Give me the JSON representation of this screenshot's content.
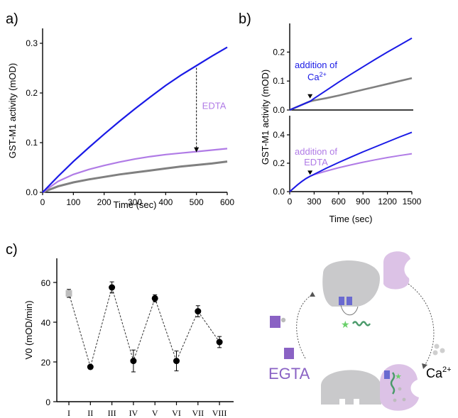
{
  "colors": {
    "calcium": "#1a1ae6",
    "edta": "#b07be6",
    "control": "#808080",
    "first_point": "#bdbdbd",
    "protein_gray": "#c9c9cb",
    "protein_purple": "#dcc2e6",
    "edge_purple": "#8a62c4",
    "helix_green": "#4a9a6a",
    "star_green": "#6ad06a"
  },
  "panel_labels": {
    "a": "a)",
    "b": "b)",
    "c": "c)"
  },
  "panel_a": {
    "xlabel": "Time (sec)",
    "ylabel": "GST-M1 activity (mOD)",
    "xticks": [
      "0",
      "100",
      "200",
      "300",
      "400",
      "500",
      "600"
    ],
    "yticks": [
      "0.0",
      "0.1",
      "0.2",
      "0.3"
    ],
    "annotation": "EDTA"
  },
  "panel_b": {
    "xlabel": "Time (sec)",
    "ylabel": "GST-M1 activity (mOD)",
    "xticks": [
      "0",
      "300",
      "600",
      "900",
      "1200",
      "1500"
    ],
    "top_yticks": [
      "0.0",
      "0.1",
      "0.2"
    ],
    "bottom_yticks": [
      "0.0",
      "0.2",
      "0.4"
    ],
    "top_annotation_line1": "addition of",
    "top_annotation_line2": "Ca",
    "top_annotation_sup": "2+",
    "bottom_annotation_line1": "addition of",
    "bottom_annotation_line2": "EDTA"
  },
  "panel_c": {
    "ylabel": "V0 (mOD/min)",
    "yticks": [
      "0",
      "20",
      "40",
      "60"
    ],
    "categories": [
      "I",
      "II",
      "III",
      "IV",
      "V",
      "VI",
      "VII",
      "VIII"
    ]
  },
  "diagram": {
    "egta_label": "EGTA",
    "ca_label": "Ca",
    "ca_sup": "2+"
  },
  "chart_data": [
    {
      "type": "line",
      "xlabel": "Time (sec)",
      "ylabel": "GST-M1 activity (mOD)",
      "xlim": [
        0,
        600
      ],
      "ylim": [
        0,
        0.33
      ],
      "annotation": {
        "text": "EDTA",
        "x": 500
      },
      "x": [
        0,
        50,
        100,
        150,
        200,
        250,
        300,
        350,
        400,
        450,
        500,
        550,
        600
      ],
      "series": [
        {
          "color": "calcium",
          "values": [
            0,
            0.032,
            0.062,
            0.09,
            0.117,
            0.143,
            0.168,
            0.192,
            0.215,
            0.236,
            0.255,
            0.274,
            0.292
          ]
        },
        {
          "color": "edta",
          "values": [
            0,
            0.022,
            0.036,
            0.046,
            0.054,
            0.061,
            0.067,
            0.072,
            0.076,
            0.079,
            0.082,
            0.085,
            0.088
          ]
        },
        {
          "color": "control",
          "values": [
            0,
            0.012,
            0.02,
            0.026,
            0.031,
            0.036,
            0.04,
            0.044,
            0.048,
            0.052,
            0.055,
            0.058,
            0.062
          ]
        }
      ]
    },
    {
      "type": "line",
      "xlabel": "Time (sec)",
      "ylabel": "GST-M1 activity (mOD)",
      "xlim": [
        0,
        1500
      ],
      "ylim": [
        0,
        0.29
      ],
      "annotation": {
        "text": "addition of Ca2+",
        "x": 250
      },
      "x": [
        0,
        100,
        200,
        250,
        300,
        450,
        600,
        750,
        900,
        1050,
        1200,
        1350,
        1500
      ],
      "series": [
        {
          "color": "calcium",
          "values": [
            0,
            0.012,
            0.024,
            0.03,
            0.04,
            0.068,
            0.096,
            0.123,
            0.149,
            0.175,
            0.2,
            0.224,
            0.248
          ]
        },
        {
          "color": "control",
          "values": [
            0,
            0.012,
            0.024,
            0.03,
            0.033,
            0.041,
            0.05,
            0.06,
            0.07,
            0.08,
            0.09,
            0.1,
            0.11
          ]
        }
      ]
    },
    {
      "type": "line",
      "xlabel": "Time (sec)",
      "ylabel": "GST-M1 activity (mOD)",
      "xlim": [
        0,
        1500
      ],
      "ylim": [
        0,
        0.47
      ],
      "annotation": {
        "text": "addition of EDTA",
        "x": 250
      },
      "x": [
        0,
        50,
        100,
        150,
        200,
        250,
        300,
        450,
        600,
        750,
        900,
        1050,
        1200,
        1350,
        1500
      ],
      "series": [
        {
          "color": "calcium",
          "values": [
            0,
            0.025,
            0.05,
            0.072,
            0.092,
            0.108,
            0.122,
            0.165,
            0.205,
            0.243,
            0.28,
            0.315,
            0.35,
            0.385,
            0.418
          ]
        },
        {
          "color": "edta",
          "values": [
            0,
            0.025,
            0.05,
            0.072,
            0.092,
            0.108,
            0.12,
            0.145,
            0.168,
            0.188,
            0.207,
            0.224,
            0.24,
            0.254,
            0.267
          ]
        }
      ]
    },
    {
      "type": "scatter",
      "ylabel": "V0 (mOD/min)",
      "ylim": [
        0,
        72
      ],
      "categories": [
        "I",
        "II",
        "III",
        "IV",
        "V",
        "VI",
        "VII",
        "VIII"
      ],
      "values": [
        54.5,
        17.5,
        57.5,
        20.5,
        52,
        20.5,
        45.5,
        30
      ],
      "errors": [
        2,
        0.8,
        2.8,
        5.5,
        1.8,
        5,
        2.8,
        2.8
      ],
      "connector": "dashed"
    }
  ]
}
